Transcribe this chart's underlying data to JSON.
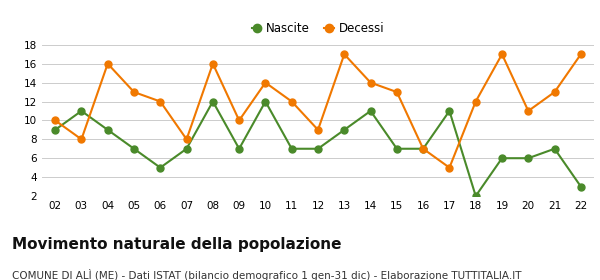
{
  "years": [
    "02",
    "03",
    "04",
    "05",
    "06",
    "07",
    "08",
    "09",
    "10",
    "11",
    "12",
    "13",
    "14",
    "15",
    "16",
    "17",
    "18",
    "19",
    "20",
    "21",
    "22"
  ],
  "nascite": [
    9,
    11,
    9,
    7,
    5,
    7,
    12,
    7,
    12,
    7,
    7,
    9,
    11,
    7,
    7,
    11,
    2,
    6,
    6,
    7,
    3
  ],
  "decessi": [
    10,
    8,
    16,
    13,
    12,
    8,
    16,
    10,
    14,
    12,
    9,
    17,
    14,
    13,
    7,
    5,
    12,
    17,
    11,
    13,
    17
  ],
  "nascite_color": "#4a8a2a",
  "decessi_color": "#f07800",
  "title": "Movimento naturale della popolazione",
  "subtitle": "COMUNE DI ALÌ (ME) - Dati ISTAT (bilancio demografico 1 gen-31 dic) - Elaborazione TUTTITALIA.IT",
  "ylim": [
    2,
    18
  ],
  "yticks": [
    2,
    4,
    6,
    8,
    10,
    12,
    14,
    16,
    18
  ],
  "background_color": "#ffffff",
  "grid_color": "#cccccc",
  "legend_nascite": "Nascite",
  "legend_decessi": "Decessi",
  "title_fontsize": 11,
  "subtitle_fontsize": 7.5,
  "marker_size": 5,
  "line_width": 1.5
}
